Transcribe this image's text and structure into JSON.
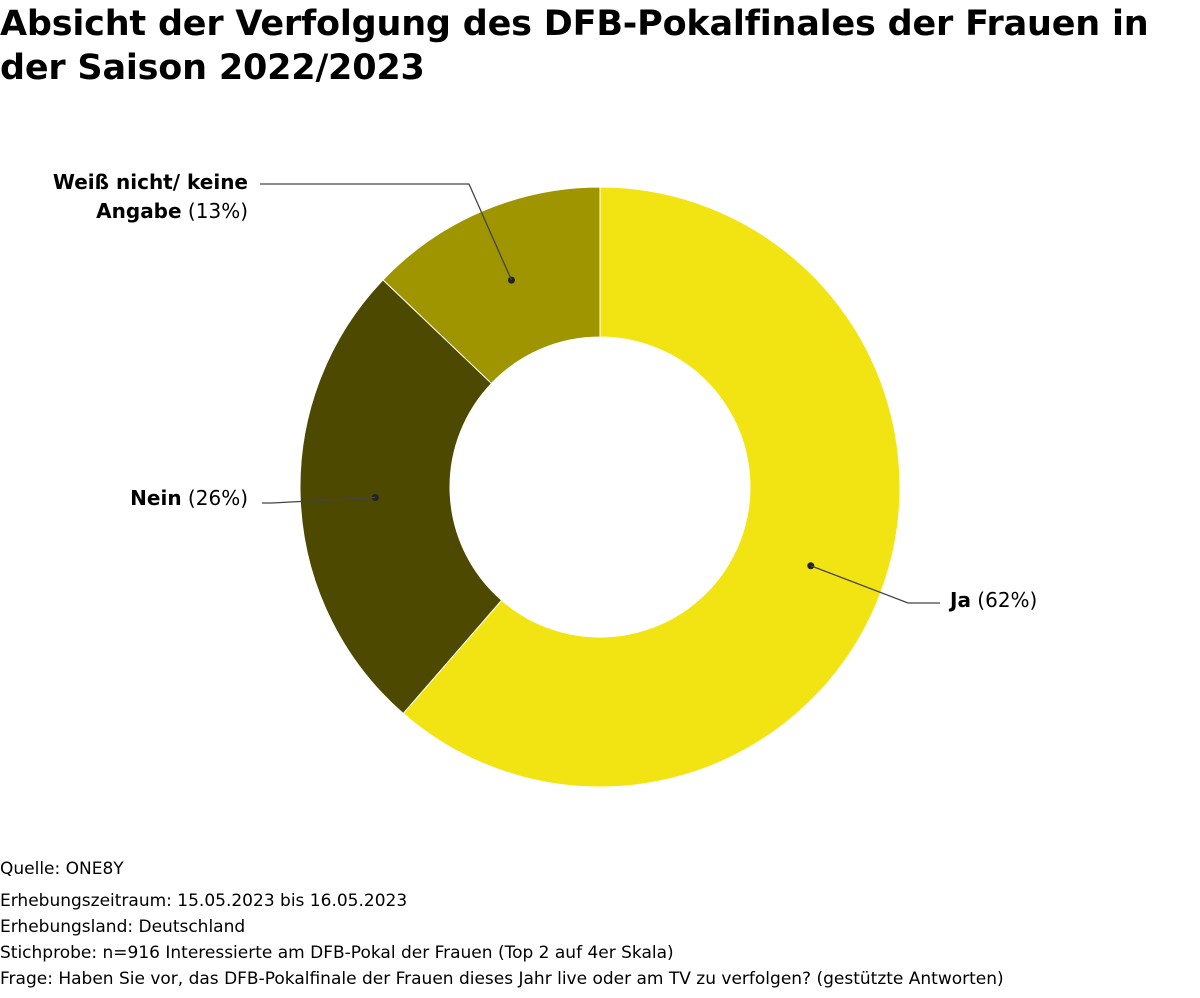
{
  "title": "Absicht der Verfolgung des DFB-Pokalfinales der Frauen in der Saison 2022/2023",
  "chart_data": {
    "type": "pie",
    "variant": "donut",
    "title": "Absicht der Verfolgung des DFB-Pokalfinales der Frauen in der Saison 2022/2023",
    "unit": "%",
    "slices": [
      {
        "name": "Ja",
        "label_lines": [
          "Ja"
        ],
        "value": 62,
        "value_label": "(62%)",
        "color": "#f2e412"
      },
      {
        "name": "Nein",
        "label_lines": [
          "Nein"
        ],
        "value": 26,
        "value_label": "(26%)",
        "color": "#4d4900"
      },
      {
        "name": "Weiß nicht/ keine Angabe",
        "label_lines": [
          "Weiß nicht/ keine",
          "Angabe"
        ],
        "value": 13,
        "value_label": "(13%)",
        "color": "#9e9500"
      }
    ]
  },
  "footer": {
    "source": "Quelle: ONE8Y",
    "period": "Erhebungszeitraum: 15.05.2023 bis 16.05.2023",
    "country": "Erhebungsland: Deutschland",
    "sample": "Stichprobe: n=916 Interessierte am DFB-Pokal der Frauen (Top 2 auf 4er Skala)",
    "question": "Frage: Haben Sie vor, das DFB-Pokalfinale der Frauen dieses Jahr live oder am TV zu verfolgen? (gestützte Antworten)"
  }
}
